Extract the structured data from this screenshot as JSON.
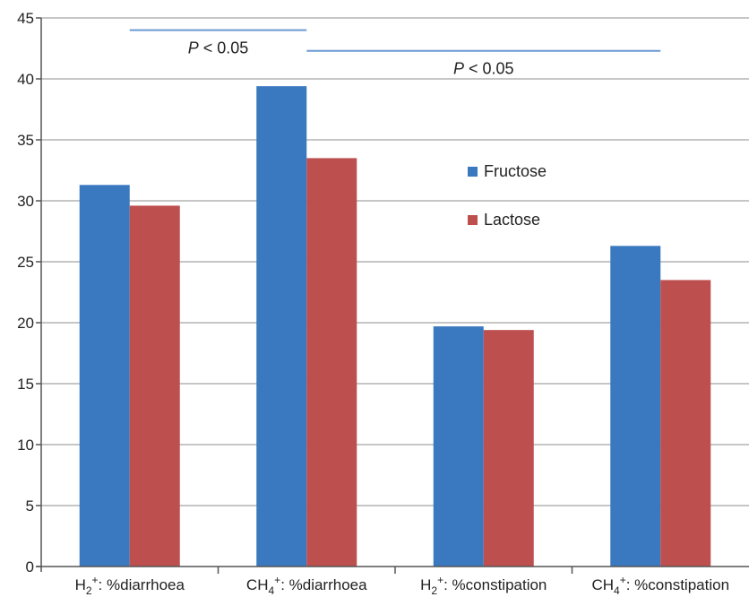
{
  "chart_data": {
    "type": "bar",
    "ylim": [
      0,
      45
    ],
    "yticks": [
      0,
      5,
      10,
      15,
      20,
      25,
      30,
      35,
      40,
      45
    ],
    "grid": true,
    "categories": [
      {
        "label": "%diarrhoea",
        "gas": "H",
        "gas_sub": "2",
        "sup": "+",
        "sep": ": "
      },
      {
        "label": "%diarrhoea",
        "gas": "CH",
        "gas_sub": "4",
        "sup": "+",
        "sep": ": "
      },
      {
        "label": "%constipation",
        "gas": "H",
        "gas_sub": "2",
        "sup": "+",
        "sep": ": "
      },
      {
        "label": "%constipation",
        "gas": "CH",
        "gas_sub": "4",
        "sup": "+",
        "sep": ": "
      }
    ],
    "series": [
      {
        "name": "Fructose",
        "color": "#3a79bf",
        "values": [
          31.3,
          39.4,
          19.7,
          26.3
        ]
      },
      {
        "name": "Lactose",
        "color": "#bd4f4f",
        "values": [
          29.6,
          33.5,
          19.4,
          23.5
        ]
      }
    ],
    "legend_placement": "center-right",
    "significance": [
      {
        "p_symbol": "P",
        "p_text": " < 0.05",
        "line_color": "#6a9ad4",
        "from_category": 0,
        "to_category": 1,
        "y": 44
      },
      {
        "p_symbol": "P",
        "p_text": " < 0.05",
        "line_color": "#6a9ad4",
        "from_category": 1,
        "to_category": 3,
        "y": 42.3
      }
    ]
  }
}
